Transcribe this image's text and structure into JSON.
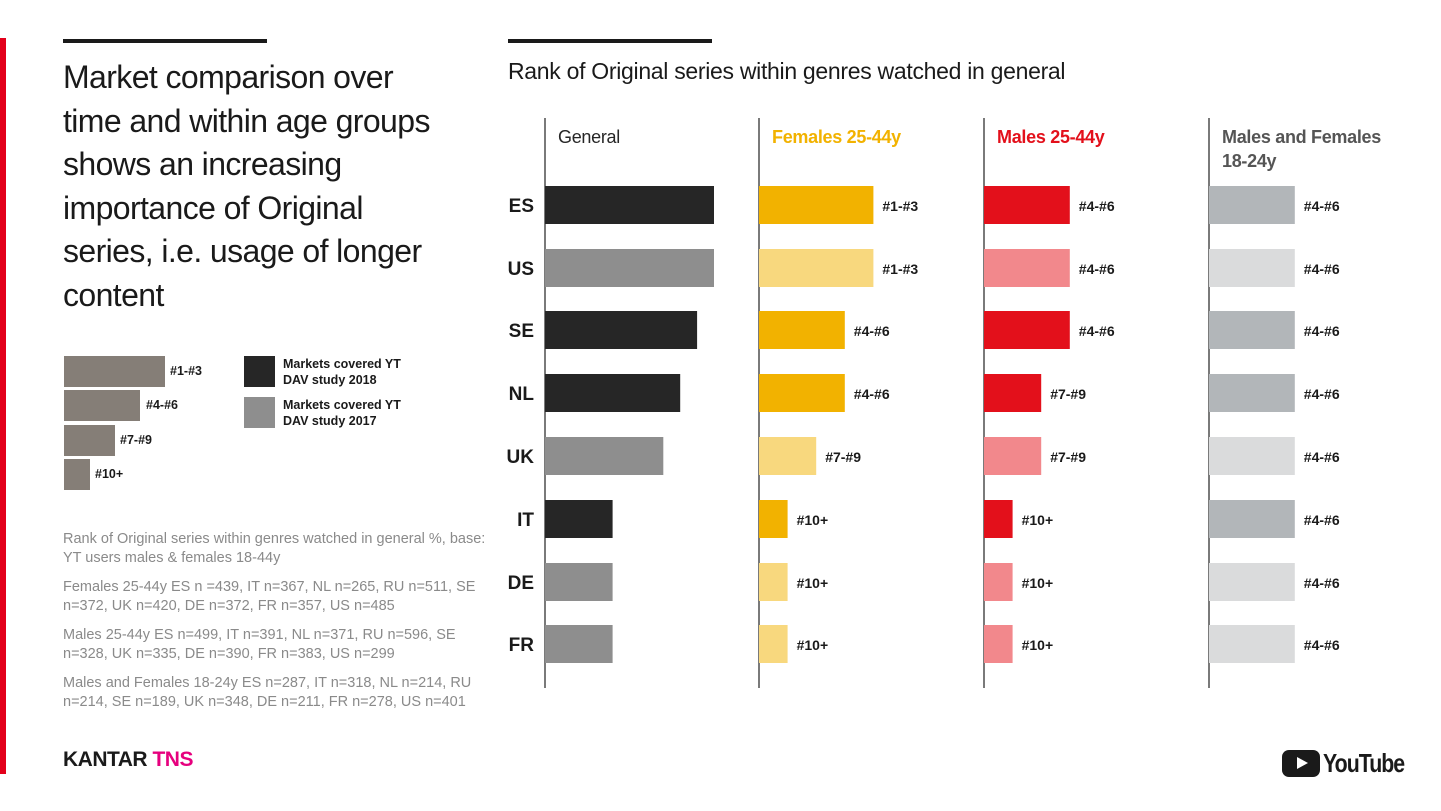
{
  "headline": "Market comparison over time and within age groups shows an increasing importance of Original series, i.e. usage of longer content",
  "legend": {
    "ranks": [
      "#1-#3",
      "#4-#6",
      "#7-#9",
      "#10+"
    ],
    "markets_2018": "Markets covered YT DAV study 2018",
    "markets_2017": "Markets covered YT DAV study 2017"
  },
  "notes": {
    "base": "Rank of Original series within genres watched in general %, base: YT users males & females 18-44y",
    "females": "Females 25-44y ES n =439, IT n=367, NL n=265, RU n=511, SE n=372, UK n=420, DE n=372, FR n=357, US n=485",
    "males": "Males 25-44y ES n=499, IT n=391, NL n=371, RU n=596, SE n=328, UK n=335, DE n=390, FR n=383, US n=299",
    "mf1824": "Males and Females 18-24y ES n=287, IT n=318, NL n=214, RU n=214, SE n=189, UK n=348, DE n=211, FR n=278, US n=401"
  },
  "brand": {
    "kantar": "KANTAR",
    "tns": "TNS",
    "youtube": "YouTube"
  },
  "colors": {
    "dark": "#262626",
    "grey": "#8e8e8e",
    "female": "#f2b200",
    "female_light": "#f8d87e",
    "male": "#e3101b",
    "male_light": "#f2888c",
    "mf": "#b2b6b9",
    "mf_light": "#dadbdc",
    "legend_rank": "#857e77",
    "headline_red": "#e3101b"
  },
  "chart_data": {
    "type": "bar",
    "title": "Rank of Original series within genres watched in general",
    "categories": [
      "ES",
      "US",
      "SE",
      "NL",
      "UK",
      "IT",
      "DE",
      "FR"
    ],
    "market_study_year": [
      2018,
      2017,
      2018,
      2018,
      2017,
      2018,
      2017,
      2017
    ],
    "rank_value_scale": {
      "#1-#3": 4,
      "#4-#6": 3,
      "#7-#9": 2,
      "#10+": 1
    },
    "series": [
      {
        "name": "General",
        "values": [
          5.0,
          5.0,
          4.5,
          4.0,
          3.5,
          2.0,
          2.0,
          2.0
        ]
      },
      {
        "name": "Females 25-44y",
        "values": [
          4,
          4,
          3,
          3,
          2,
          1,
          1,
          1
        ],
        "labels": [
          "#1-#3",
          "#1-#3",
          "#4-#6",
          "#4-#6",
          "#7-#9",
          "#10+",
          "#10+",
          "#10+"
        ]
      },
      {
        "name": "Males 25-44y",
        "values": [
          3,
          3,
          3,
          2,
          2,
          1,
          1,
          1
        ],
        "labels": [
          "#4-#6",
          "#4-#6",
          "#4-#6",
          "#7-#9",
          "#7-#9",
          "#10+",
          "#10+",
          "#10+"
        ]
      },
      {
        "name": "Males and Females 18-24y",
        "values": [
          3,
          3,
          3,
          3,
          3,
          3,
          3,
          3
        ],
        "labels": [
          "#4-#6",
          "#4-#6",
          "#4-#6",
          "#4-#6",
          "#4-#6",
          "#4-#6",
          "#4-#6",
          "#4-#6"
        ]
      }
    ],
    "header_colors": [
      "#262626",
      "#f2b200",
      "#e3101b",
      "#555555"
    ]
  }
}
